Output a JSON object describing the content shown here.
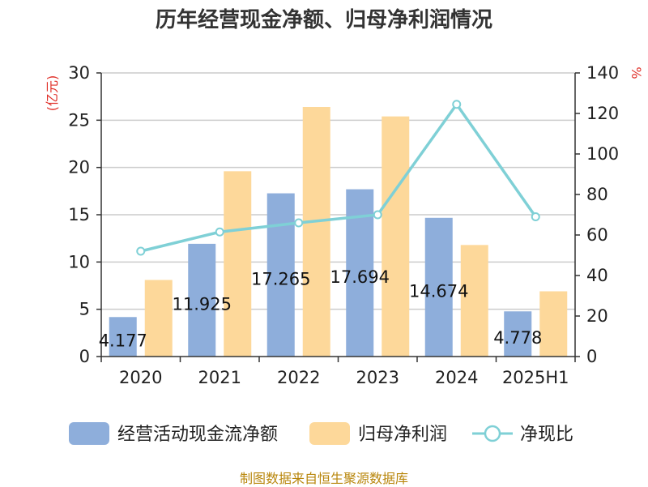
{
  "title": "历年经营现金净额、归母净利润情况",
  "source": "制图数据来自恒生聚源数据库",
  "chart_data": {
    "type": "bar",
    "categories": [
      "2020",
      "2021",
      "2022",
      "2023",
      "2024",
      "2025H1"
    ],
    "y_left": {
      "label": "(亿元)",
      "min": 0,
      "max": 30,
      "ticks": [
        0,
        5,
        10,
        15,
        20,
        25,
        30
      ]
    },
    "y_right": {
      "label": "%",
      "min": 0,
      "max": 140,
      "ticks": [
        0,
        20,
        40,
        60,
        80,
        100,
        120,
        140
      ]
    },
    "grid": true,
    "legend_position": "bottom",
    "series": [
      {
        "name": "经营活动现金流净额",
        "type": "bar",
        "axis": "left",
        "color": "#8eaedb",
        "values": [
          4.177,
          11.925,
          17.265,
          17.694,
          14.674,
          4.778
        ],
        "data_labels": [
          "4.177",
          "11.925",
          "17.265",
          "17.694",
          "14.674",
          "4.778"
        ]
      },
      {
        "name": "归母净利润",
        "type": "bar",
        "axis": "left",
        "color": "#fdd89a",
        "values": [
          8.1,
          19.6,
          26.4,
          25.4,
          11.8,
          6.9
        ]
      },
      {
        "name": "净现比",
        "type": "line",
        "axis": "right",
        "color": "#7fd0d6",
        "values": [
          52,
          61.5,
          66,
          70,
          124.5,
          69
        ]
      }
    ]
  }
}
